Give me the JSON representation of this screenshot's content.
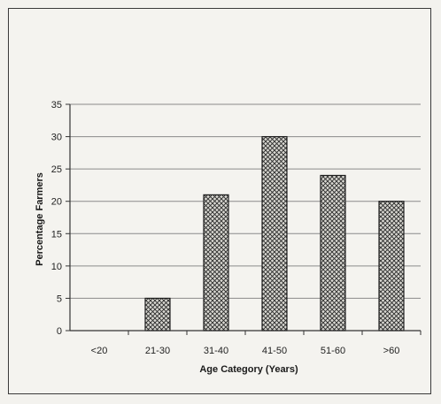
{
  "chart_data": {
    "type": "bar",
    "title": "",
    "xlabel": "Age Category (Years)",
    "ylabel": "Percentage Farmers",
    "categories": [
      "<20",
      "21-30",
      "31-40",
      "41-50",
      "51-60",
      ">60"
    ],
    "values": [
      0,
      5,
      21,
      30,
      24,
      20
    ],
    "ylim": [
      0,
      35
    ],
    "yticks": [
      0,
      5,
      10,
      15,
      20,
      25,
      30,
      35
    ],
    "grid": true,
    "legend": "none",
    "bar_fill": "crosshatch",
    "colors": {
      "bar_stroke": "#1e1e1e",
      "hatch": "#2a2a2a",
      "bar_bg": "#d9d8d2",
      "grid": "#8a8a8a",
      "axis": "#333333"
    }
  }
}
